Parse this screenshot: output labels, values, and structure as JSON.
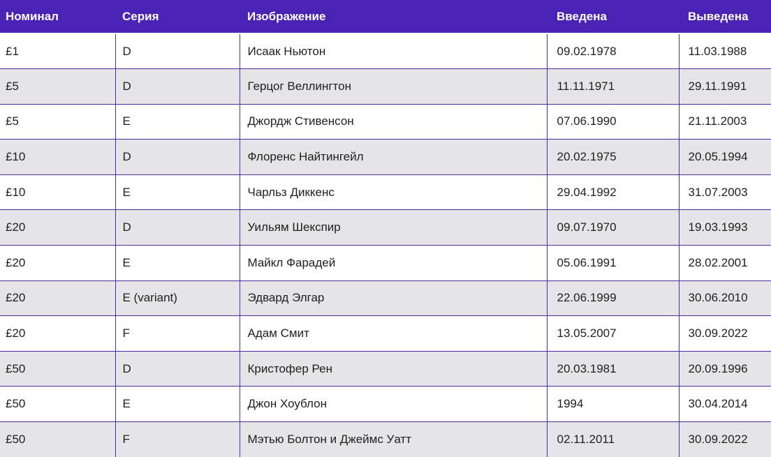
{
  "table": {
    "columns": [
      {
        "label": "Номинал"
      },
      {
        "label": "Серия"
      },
      {
        "label": "Изображение"
      },
      {
        "label": "Введена"
      },
      {
        "label": "Выведена"
      }
    ],
    "rows": [
      [
        "£1",
        "D",
        "Исаак Ньютон",
        "09.02.1978",
        "11.03.1988"
      ],
      [
        "£5",
        "D",
        "Герцог Веллингтон",
        "11.11.1971",
        "29.11.1991"
      ],
      [
        "£5",
        "E",
        "Джордж Стивенсон",
        "07.06.1990",
        "21.11.2003"
      ],
      [
        "£10",
        "D",
        "Флоренс Найтингейл",
        "20.02.1975",
        "20.05.1994"
      ],
      [
        "£10",
        "E",
        "Чарльз Диккенс",
        "29.04.1992",
        "31.07.2003"
      ],
      [
        "£20",
        "D",
        "Уильям Шекспир",
        "09.07.1970",
        "19.03.1993"
      ],
      [
        "£20",
        "E",
        "Майкл Фарадей",
        "05.06.1991",
        "28.02.2001"
      ],
      [
        "£20",
        "E (variant)",
        "Эдвард Элгар",
        "22.06.1999",
        "30.06.2010"
      ],
      [
        "£20",
        "F",
        "Адам Смит",
        "13.05.2007",
        "30.09.2022"
      ],
      [
        "£50",
        "D",
        "Кристофер Рен",
        "20.03.1981",
        "20.09.1996"
      ],
      [
        "£50",
        "E",
        "Джон Хоублон",
        "1994",
        "30.04.2014"
      ],
      [
        "£50",
        "F",
        "Мэтью Болтон и Джеймс Уатт",
        "02.11.2011",
        "30.09.2022"
      ]
    ],
    "colors": {
      "header_bg": "#4a23b4",
      "header_text": "#ffffff",
      "row_bg": "#ffffff",
      "row_alt_bg": "#e5e4e6",
      "border": "#4c2c9e",
      "text": "#1f1f1f"
    }
  }
}
